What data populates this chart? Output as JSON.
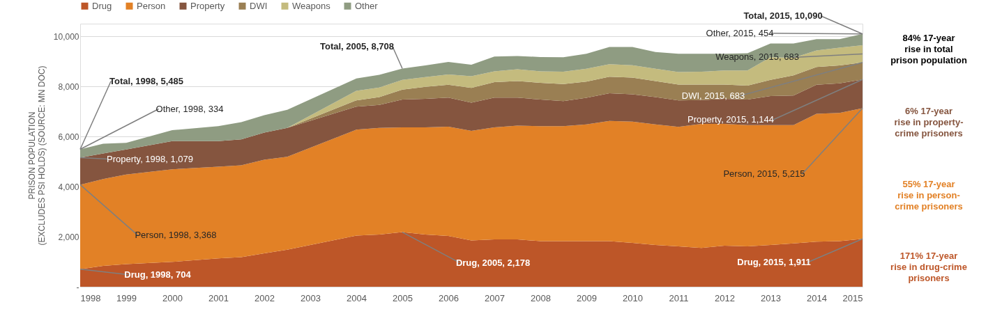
{
  "chart_data": {
    "type": "area",
    "stacked": true,
    "ylabel": "PRISON POPULATION\n(EXCLUDES PSI HOLDS) (SOURCE: MN DOC)",
    "x": [
      1998,
      1998.5,
      1999,
      2000,
      2001,
      2001.5,
      2002,
      2002.5,
      2004,
      2004.5,
      2005,
      2005.5,
      2006,
      2006.5,
      2007,
      2007.5,
      2008,
      2008.5,
      2009,
      2009.5,
      2010,
      2010.5,
      2011,
      2011.5,
      2012,
      2012.5,
      2013,
      2013.5,
      2014,
      2014.5,
      2015
    ],
    "series": [
      {
        "name": "Drug",
        "color": "#bd5628",
        "values": [
          704,
          830,
          900,
          990,
          1130,
          1180,
          1330,
          1480,
          2040,
          2080,
          2178,
          2080,
          2030,
          1850,
          1890,
          1890,
          1820,
          1820,
          1820,
          1820,
          1750,
          1670,
          1610,
          1550,
          1640,
          1610,
          1670,
          1730,
          1800,
          1820,
          1911
        ]
      },
      {
        "name": "Person",
        "color": "#e28126",
        "values": [
          3368,
          3470,
          3580,
          3700,
          3660,
          3670,
          3740,
          3710,
          4230,
          4260,
          4182,
          4280,
          4360,
          4370,
          4470,
          4540,
          4590,
          4590,
          4660,
          4800,
          4840,
          4810,
          4770,
          4950,
          4860,
          4840,
          4780,
          4720,
          5100,
          5120,
          5215
        ]
      },
      {
        "name": "Property",
        "color": "#85553f",
        "values": [
          1079,
          1020,
          1000,
          1120,
          1020,
          1030,
          1080,
          1150,
          920,
          920,
          1110,
          1140,
          1160,
          1130,
          1190,
          1120,
          1060,
          1000,
          1060,
          1100,
          1090,
          1090,
          1060,
          950,
          1000,
          1020,
          1160,
          1180,
          1160,
          1180,
          1144
        ]
      },
      {
        "name": "DWI",
        "color": "#9a7f53",
        "values": [
          0,
          0,
          0,
          0,
          0,
          0,
          0,
          0,
          250,
          310,
          400,
          480,
          510,
          590,
          620,
          660,
          670,
          680,
          650,
          660,
          670,
          640,
          630,
          620,
          570,
          560,
          650,
          810,
          710,
          710,
          683
        ]
      },
      {
        "name": "Weapons",
        "color": "#c4bb7e",
        "values": [
          0,
          0,
          0,
          0,
          0,
          0,
          0,
          0,
          380,
          380,
          390,
          390,
          410,
          460,
          430,
          470,
          460,
          490,
          510,
          500,
          490,
          490,
          500,
          510,
          560,
          600,
          900,
          700,
          660,
          710,
          683
        ]
      },
      {
        "name": "Other",
        "color": "#8f9c82",
        "values": [
          334,
          390,
          260,
          440,
          600,
          690,
          700,
          720,
          490,
          510,
          448,
          460,
          500,
          460,
          590,
          530,
          570,
          580,
          600,
          690,
          730,
          670,
          730,
          720,
          670,
          690,
          550,
          570,
          450,
          340,
          454
        ]
      }
    ],
    "xlim": [
      1998,
      2015
    ],
    "xticks": [
      1998,
      1999,
      2000,
      2001,
      2002,
      2003,
      2004,
      2005,
      2006,
      2007,
      2008,
      2009,
      2010,
      2011,
      2012,
      2013,
      2014,
      2015
    ],
    "ylim": [
      0,
      10500
    ],
    "yticks": [
      {
        "value": 0,
        "label": "-"
      },
      {
        "value": 2000,
        "label": "2,000"
      },
      {
        "value": 4000,
        "label": "4,000"
      },
      {
        "value": 6000,
        "label": "6,000"
      },
      {
        "value": 8000,
        "label": "8,000"
      },
      {
        "value": 10000,
        "label": "10,000"
      }
    ],
    "grid": "y",
    "legend": "top",
    "annotations": [
      {
        "text": "Total, 1998,  5,485",
        "x": 1998,
        "y": 5485
      },
      {
        "text": "Other, 1998,  334",
        "x": 1998,
        "y": 5485
      },
      {
        "text": "Property, 1998,  1,079",
        "x": 1998,
        "y": 5151
      },
      {
        "text": "Person, 1998,  3,368",
        "x": 1998,
        "y": 4072
      },
      {
        "text": "Drug, 1998,  704",
        "x": 1998,
        "y": 704
      },
      {
        "text": "Total, 2005,  8,708",
        "x": 2005,
        "y": 8708
      },
      {
        "text": "Drug, 2005,  2,178",
        "x": 2005,
        "y": 2178
      },
      {
        "text": "Total, 2015,  10,090",
        "x": 2015,
        "y": 10090
      },
      {
        "text": "Other, 2015,  454",
        "x": 2015,
        "y": 10090
      },
      {
        "text": "Weapons, 2015,  683",
        "x": 2015,
        "y": 9295
      },
      {
        "text": "DWI, 2015,  683",
        "x": 2015,
        "y": 8953
      },
      {
        "text": "Property, 2015,  1,144",
        "x": 2015,
        "y": 8270
      },
      {
        "text": "Person, 2015,  5,215",
        "x": 2015,
        "y": 7126
      },
      {
        "text": "Drug, 2015,  1,911",
        "x": 2015,
        "y": 1911
      },
      "84% 17-year\nrise in total\nprison population",
      "6% 17-year\nrise in property-\ncrime prisoners",
      "55% 17-year\nrise in person-\ncrime prisoners",
      "171% 17-year\nrise in drug-crime\nprisoners"
    ]
  }
}
